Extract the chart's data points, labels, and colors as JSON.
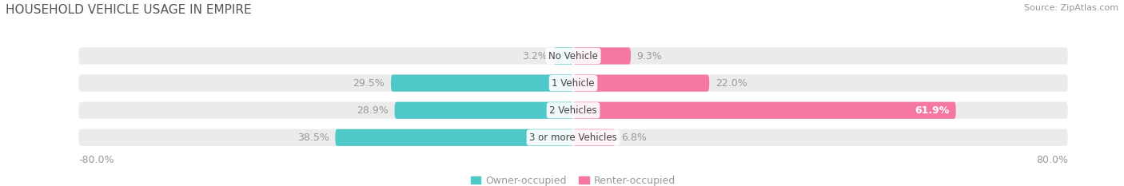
{
  "title": "HOUSEHOLD VEHICLE USAGE IN EMPIRE",
  "source": "Source: ZipAtlas.com",
  "categories": [
    "No Vehicle",
    "1 Vehicle",
    "2 Vehicles",
    "3 or more Vehicles"
  ],
  "owner_values": [
    3.2,
    29.5,
    28.9,
    38.5
  ],
  "renter_values": [
    9.3,
    22.0,
    61.9,
    6.8
  ],
  "owner_color": "#4EC8C8",
  "renter_color": "#F478A0",
  "label_color": "#999999",
  "title_color": "#555555",
  "bg_color": "#FFFFFF",
  "bar_bg_color": "#EBEBEB",
  "bar_height": 0.62,
  "xlim": [
    -80,
    80
  ],
  "x_ticks": [
    -80,
    80
  ],
  "legend_owner": "Owner-occupied",
  "legend_renter": "Renter-occupied",
  "figwidth": 14.06,
  "figheight": 2.33,
  "dpi": 100
}
